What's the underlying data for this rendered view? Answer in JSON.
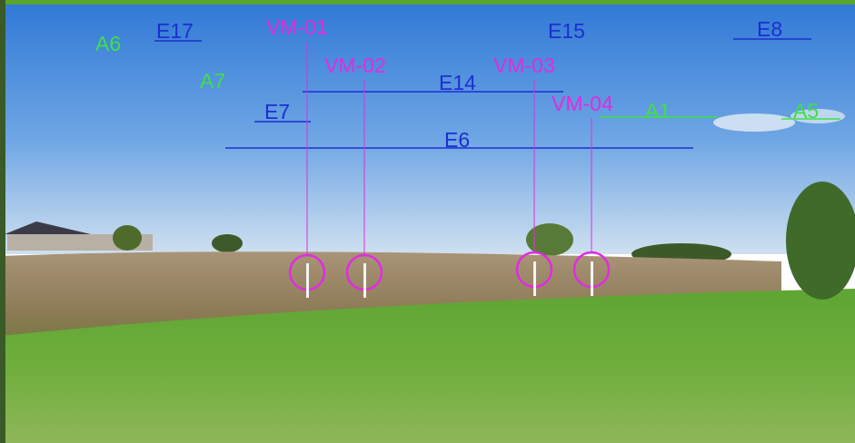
{
  "labels": {
    "A6": "A6",
    "E17": "E17",
    "VM-01": "VM-01",
    "E15": "E15",
    "E8": "E8",
    "VM-02": "VM-02",
    "VM-03": "VM-03",
    "A7": "A7",
    "E14": "E14",
    "E7": "E7",
    "VM-04": "VM-04",
    "A1": "A1",
    "A5": "A5",
    "E6": "E6"
  }
}
